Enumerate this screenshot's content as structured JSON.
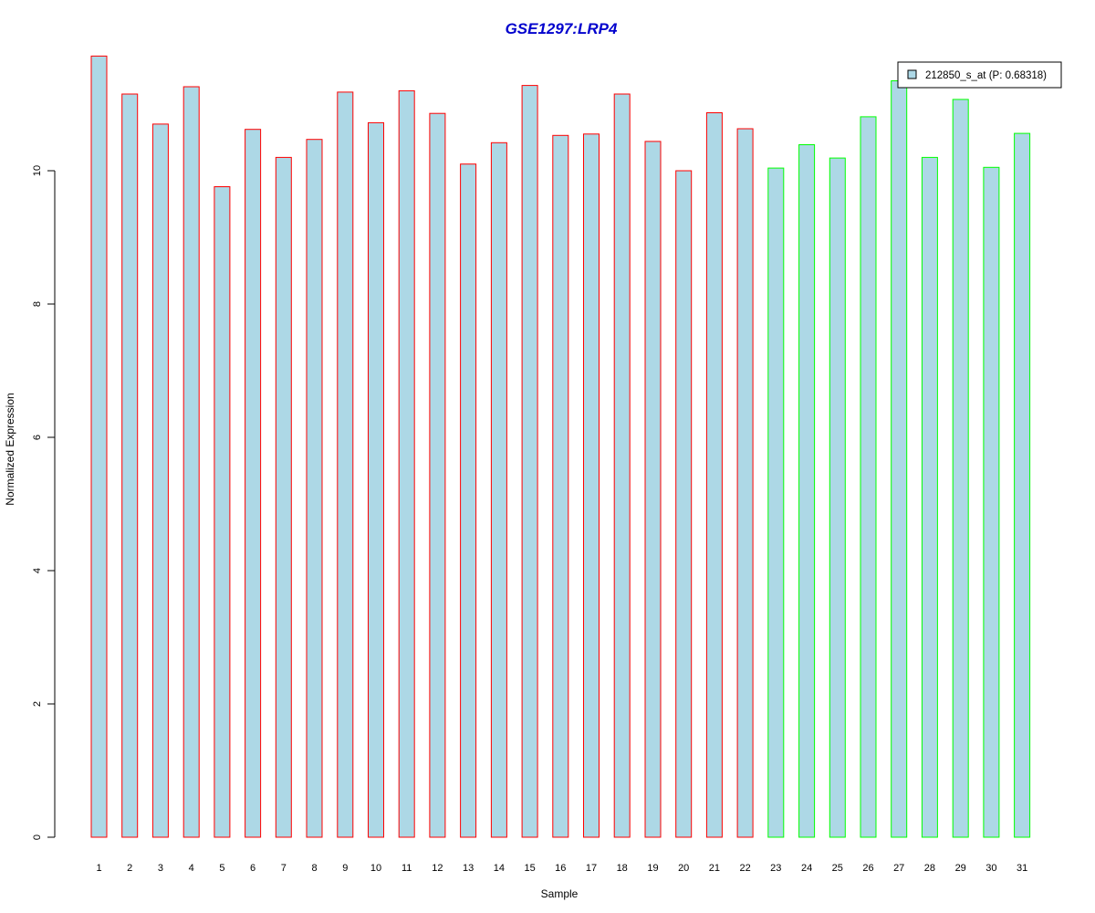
{
  "chart_data": {
    "type": "bar",
    "title": "GSE1297:LRP4",
    "xlabel": "Sample",
    "ylabel": "Normalized Expression",
    "categories": [
      "1",
      "2",
      "3",
      "4",
      "5",
      "6",
      "7",
      "8",
      "9",
      "10",
      "11",
      "12",
      "13",
      "14",
      "15",
      "16",
      "17",
      "18",
      "19",
      "20",
      "21",
      "22",
      "23",
      "24",
      "25",
      "26",
      "27",
      "28",
      "29",
      "30",
      "31"
    ],
    "series": [
      {
        "name": "212850_s_at (P: 0.68318)",
        "values": [
          11.72,
          11.15,
          10.7,
          11.26,
          9.76,
          10.62,
          10.2,
          10.47,
          11.18,
          10.72,
          11.2,
          10.86,
          10.1,
          10.42,
          11.28,
          10.53,
          10.55,
          11.15,
          10.44,
          10.0,
          10.87,
          10.63,
          10.04,
          10.39,
          10.19,
          10.81,
          11.35,
          10.2,
          11.07,
          10.05,
          10.56
        ]
      }
    ],
    "ylim": [
      0,
      11.72
    ],
    "yticks": [
      0,
      2,
      4,
      6,
      8,
      10
    ],
    "ytick_labels": [
      "0",
      "2",
      "4",
      "6",
      "8",
      "10"
    ],
    "bar_fill": "#add8e6",
    "group_border_colors": [
      "#ff0000",
      "#ff0000",
      "#ff0000",
      "#ff0000",
      "#ff0000",
      "#ff0000",
      "#ff0000",
      "#ff0000",
      "#ff0000",
      "#ff0000",
      "#ff0000",
      "#ff0000",
      "#ff0000",
      "#ff0000",
      "#ff0000",
      "#ff0000",
      "#ff0000",
      "#ff0000",
      "#ff0000",
      "#ff0000",
      "#ff0000",
      "#ff0000",
      "#00ff00",
      "#00ff00",
      "#00ff00",
      "#00ff00",
      "#00ff00",
      "#00ff00",
      "#00ff00",
      "#00ff00",
      "#00ff00"
    ],
    "title_color": "#0000cd",
    "legend": {
      "label": "212850_s_at (P: 0.68318)",
      "swatch_color": "#add8e6",
      "position": "top-right"
    },
    "grid": false
  }
}
